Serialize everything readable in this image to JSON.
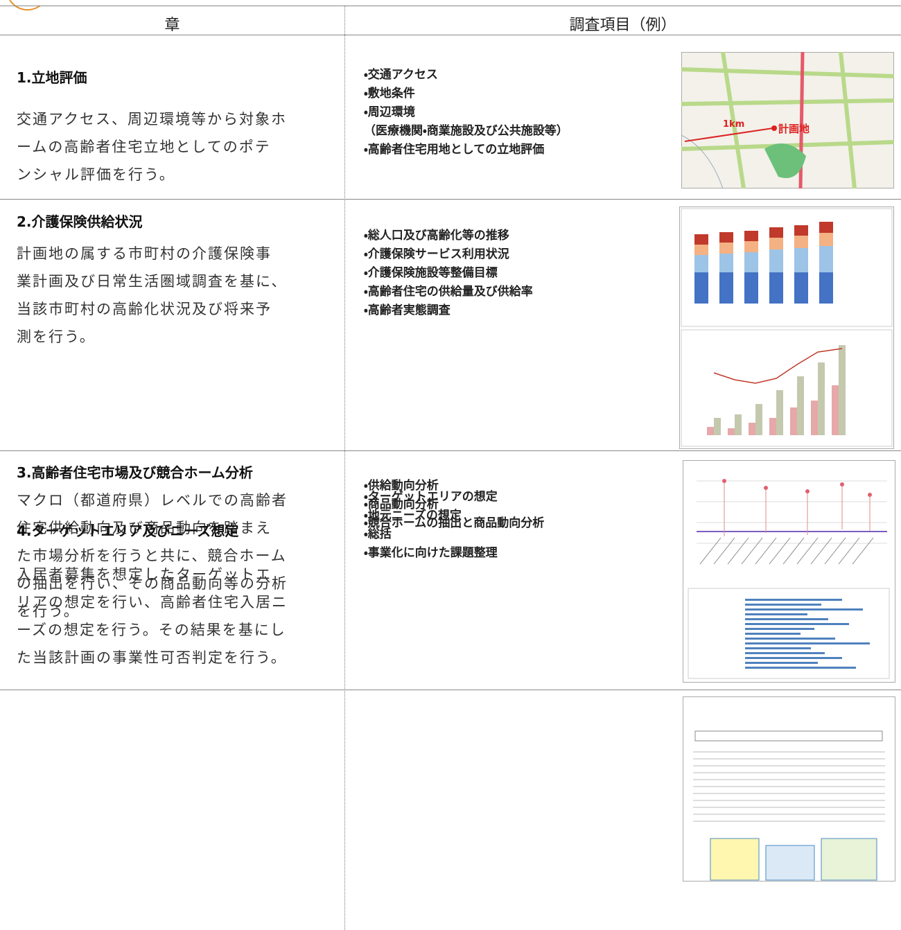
{
  "header": {
    "chapter": "章",
    "items": "調査項目（例）"
  },
  "rows": [
    {
      "title": "1.立地評価",
      "description": [
        "交通アクセス、周辺環境等から対象ホ",
        "ームの高齢者住宅立地としてのポテ",
        "ンシャル評価を行う。"
      ],
      "items": [
        "・交通アクセス",
        "・敷地条件",
        "・周辺環境",
        "（医療機関・商業施設及び公共施設等）",
        "・高齢者住宅用地としての立地評価"
      ],
      "figure": {
        "distance": "1km",
        "site": "計画地"
      }
    },
    {
      "title": "2.介護保険供給状況",
      "description": [
        "計画地の属する市町村の介護保険事",
        "業計画及び日常生活圏域調査を基に、",
        "当該市町村の高齢化状況及び将来予",
        "測を行う。"
      ],
      "items": [
        "・総人口及び高齢化等の推移",
        "・介護保険サービス利用状況",
        "・介護保険施設等整備目標",
        "・高齢者住宅の供給量及び供給率",
        "・高齢者実態調査"
      ]
    },
    {
      "title": "3.高齢者住宅市場及び競合ホーム分析",
      "description": [
        "マクロ（都道府県）レベルでの高齢者",
        "住宅供給動向及び商品動向を踏まえ",
        "た市場分析を行うと共に、競合ホーム",
        "の抽出を行い、その商品動向等の分析",
        "を行う。"
      ],
      "items": [
        "・供給動向分析",
        "・商品動向分析",
        "・競合ホームの抽出と商品動向分析"
      ]
    },
    {
      "title": "4.ターゲットエリア及びニーズ想定",
      "description": [
        "入居者募集を想定したターゲットエ",
        "リアの想定を行い、高齢者住宅入居ニ",
        "ーズの想定を行う。その結果を基にし",
        "た当該計画の事業性可否判定を行う。"
      ],
      "items": [
        "・ターゲットエリアの想定",
        "・地元ニーズの想定",
        "・総括",
        "・事業化に向けた課題整理"
      ]
    }
  ]
}
